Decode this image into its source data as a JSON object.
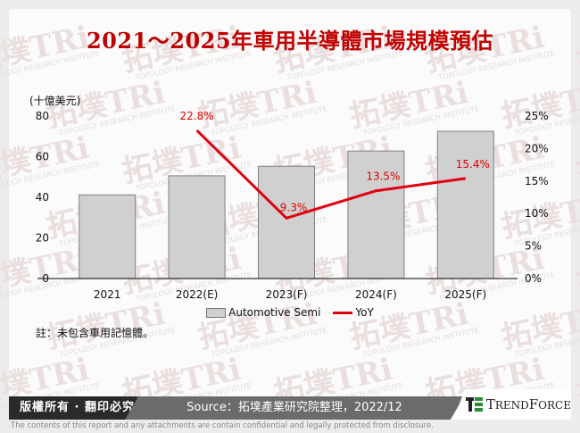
{
  "title": "2021～2025年車用半導體市場規模預估",
  "unit_label": "(十億美元)",
  "note": "註：未包含車用記憶體。",
  "footer": {
    "copyright": "版權所有 · 翻印必究",
    "source": "Source：拓墣產業研究院整理，2022/12",
    "brand": "TrendForce",
    "disclaimer": "The contents of this report and any attachments are contain confidential and legally protected from disclosure."
  },
  "watermark": {
    "text": "拓墣TRi",
    "subtext": "TOPOLOGY RESEARCH INSTITUTE"
  },
  "colors": {
    "bar_fill": "#d0d0d0",
    "bar_stroke": "#808080",
    "line": "#e00010",
    "title": "#c00000"
  },
  "legend": [
    {
      "label": "Automotive Semi",
      "type": "bar"
    },
    {
      "label": "YoY",
      "type": "line"
    }
  ],
  "chart_data": {
    "type": "bar+line",
    "title": "2021～2025年車用半導體市場規模預估",
    "categories": [
      "2021",
      "2022(E)",
      "2023(F)",
      "2024(F)",
      "2025(F)"
    ],
    "series": [
      {
        "name": "Automotive Semi",
        "type": "bar",
        "axis": "left",
        "values": [
          41.2,
          50.6,
          55.3,
          62.8,
          72.5
        ]
      },
      {
        "name": "YoY",
        "type": "line",
        "axis": "right",
        "values": [
          null,
          22.8,
          9.3,
          13.5,
          15.4
        ],
        "labels": [
          "",
          "22.8%",
          "9.3%",
          "13.5%",
          "15.4%"
        ]
      }
    ],
    "ylabel": "(十億美元)",
    "ylim": [
      0,
      80
    ],
    "yticks": [
      "0",
      "20",
      "40",
      "60",
      "80"
    ],
    "y2lim": [
      0,
      25
    ],
    "y2ticks": [
      "0%",
      "5%",
      "10%",
      "15%",
      "20%",
      "25%"
    ],
    "grid": false,
    "legend_position": "bottom"
  }
}
